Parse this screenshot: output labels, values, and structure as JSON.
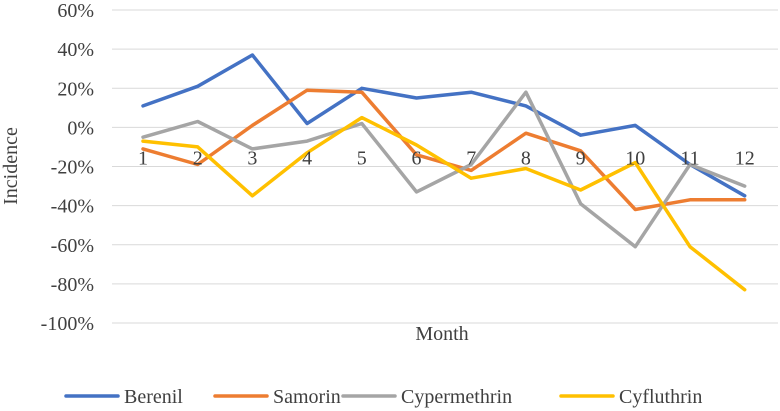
{
  "chart_data": {
    "type": "line",
    "title": "",
    "xlabel": "Month",
    "ylabel": "Incidence",
    "categories": [
      "1",
      "2",
      "3",
      "4",
      "5",
      "6",
      "7",
      "8",
      "9",
      "10",
      "11",
      "12"
    ],
    "y_ticks": [
      "60%",
      "40%",
      "20%",
      "0%",
      "-20%",
      "-40%",
      "-60%",
      "-80%",
      "-100%"
    ],
    "ylim": [
      -100,
      60
    ],
    "y_unit": "%",
    "grid": true,
    "legend_position": "bottom",
    "series": [
      {
        "name": "Berenil",
        "color": "#4472C4",
        "values": [
          11,
          21,
          37,
          2,
          20,
          15,
          18,
          11,
          -4,
          1,
          -19,
          -35
        ]
      },
      {
        "name": "Samorin",
        "color": "#ED7D31",
        "values": [
          -11,
          -19,
          1,
          19,
          18,
          -14,
          -22,
          -3,
          -12,
          -42,
          -37,
          -37
        ]
      },
      {
        "name": "Cypermethrin",
        "color": "#A5A5A5",
        "values": [
          -5,
          3,
          -11,
          -7,
          2,
          -33,
          -19,
          18,
          -39,
          -61,
          -19,
          -30
        ]
      },
      {
        "name": "Cyfluthrin",
        "color": "#FFC000",
        "values": [
          -7,
          -10,
          -35,
          -13,
          5,
          -9,
          -26,
          -21,
          -32,
          -18,
          -61,
          -83
        ]
      }
    ]
  }
}
